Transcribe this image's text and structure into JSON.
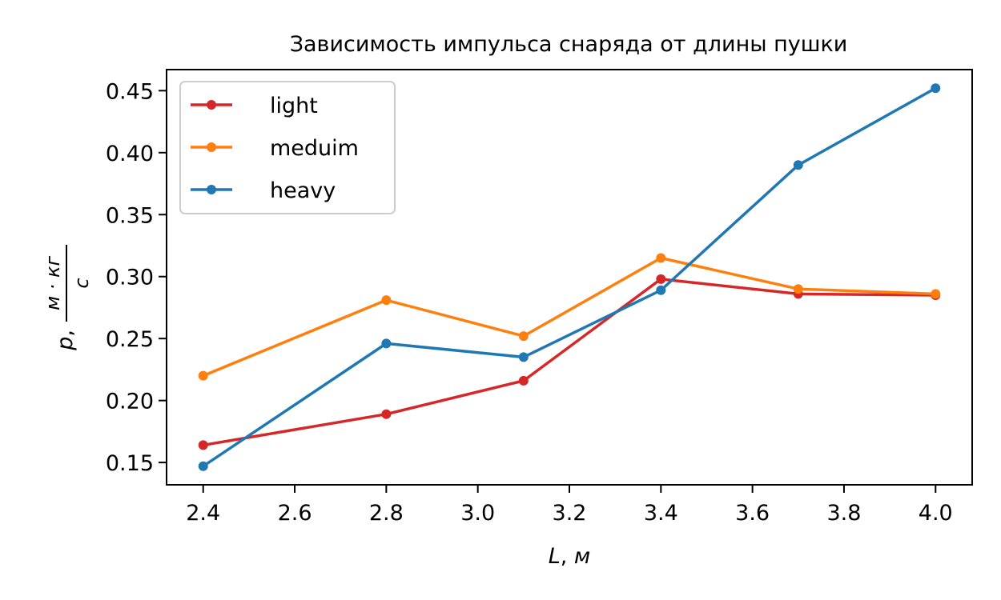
{
  "chart_data": {
    "type": "line",
    "title": "Зависимость импульса снаряда от длины пушки",
    "xlabel": {
      "var": "L",
      "unit": "м"
    },
    "ylabel": {
      "var": "p",
      "numerator": "м · кг",
      "denominator": "с"
    },
    "x": [
      2.4,
      2.8,
      3.1,
      3.4,
      3.7,
      4.0
    ],
    "xlim": [
      2.32,
      4.08
    ],
    "ylim": [
      0.132,
      0.467
    ],
    "xticks": [
      "2.4",
      "2.6",
      "2.8",
      "3.0",
      "3.2",
      "3.4",
      "3.6",
      "3.8",
      "4.0"
    ],
    "yticks": [
      "0.15",
      "0.20",
      "0.25",
      "0.30",
      "0.35",
      "0.40",
      "0.45"
    ],
    "grid": false,
    "legend": "upper-left",
    "series": [
      {
        "name": "light",
        "color": "#d62728",
        "values": [
          0.164,
          0.189,
          0.216,
          0.298,
          0.286,
          0.285
        ]
      },
      {
        "name": "meduim",
        "color": "#ff7f0e",
        "values": [
          0.22,
          0.281,
          0.252,
          0.315,
          0.29,
          0.286
        ]
      },
      {
        "name": "heavy",
        "color": "#1f77b4",
        "values": [
          0.147,
          0.246,
          0.235,
          0.289,
          0.39,
          0.452
        ]
      }
    ]
  }
}
